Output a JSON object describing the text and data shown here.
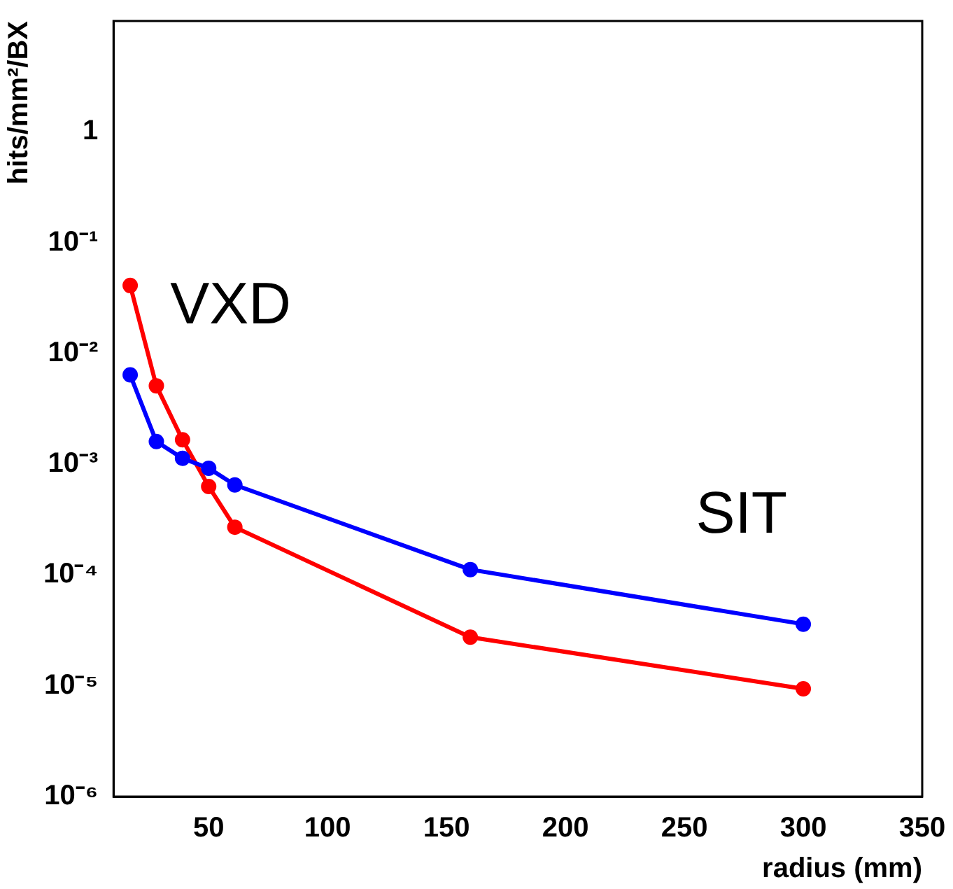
{
  "chart_data": {
    "type": "line",
    "xlabel": "radius (mm)",
    "ylabel": "hits/mm²/BX",
    "annotations": [
      "VXD",
      "SIT"
    ],
    "x": [
      17,
      28,
      39,
      50,
      61,
      160,
      300
    ],
    "series": [
      {
        "color": "#0000ff",
        "values": [
          0.0064,
          0.0016,
          0.00113,
          0.00092,
          0.00065,
          0.000112,
          3.6e-05
        ]
      },
      {
        "color": "#ff0000",
        "values": [
          0.041,
          0.0051,
          0.00166,
          0.00063,
          0.00027,
          2.75e-05,
          9.4e-06
        ]
      }
    ],
    "xlim": [
      10,
      350
    ],
    "xticks": [
      50,
      100,
      150,
      200,
      250,
      300,
      350
    ],
    "ylim": [
      1e-06,
      10
    ],
    "yticks": [
      {
        "value": 1e-06,
        "label": "10⁻⁶"
      },
      {
        "value": 1e-05,
        "label": "10⁻⁵"
      },
      {
        "value": 0.0001,
        "label": "10⁻⁴"
      },
      {
        "value": 0.001,
        "label": "10⁻³"
      },
      {
        "value": 0.01,
        "label": "10⁻²"
      },
      {
        "value": 0.1,
        "label": "10⁻¹"
      },
      {
        "value": 1,
        "label": "1"
      }
    ],
    "log": true,
    "grid": false,
    "legend": false,
    "marker": "circle",
    "line_style": "solid"
  }
}
